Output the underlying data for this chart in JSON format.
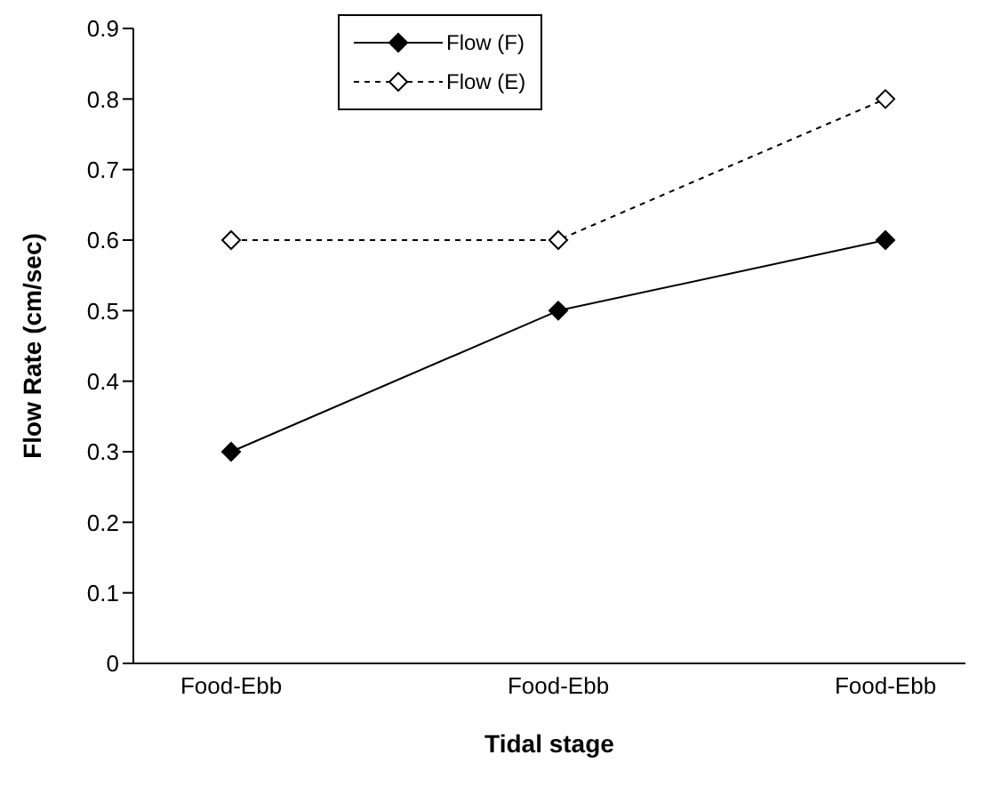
{
  "chart_data": {
    "type": "line",
    "xlabel": "Tidal stage",
    "ylabel": "Flow Rate (cm/sec)",
    "categories": [
      "Food-Ebb",
      "Food-Ebb",
      "Food-Ebb"
    ],
    "series": [
      {
        "name": "Flow (F)",
        "color": "#000000",
        "values": [
          0.3,
          0.5,
          0.6
        ],
        "line_style": "solid",
        "marker": "diamond"
      },
      {
        "name": "Flow (E)",
        "color": "#000000",
        "values": [
          0.6,
          0.6,
          0.8
        ],
        "line_style": "dotted",
        "marker": "diamond"
      }
    ],
    "ylim": [
      0,
      0.9
    ],
    "yticks": [
      0,
      0.1,
      0.2,
      0.3,
      0.4,
      0.5,
      0.6,
      0.7,
      0.8,
      0.9
    ],
    "grid": false,
    "legend": "top"
  }
}
